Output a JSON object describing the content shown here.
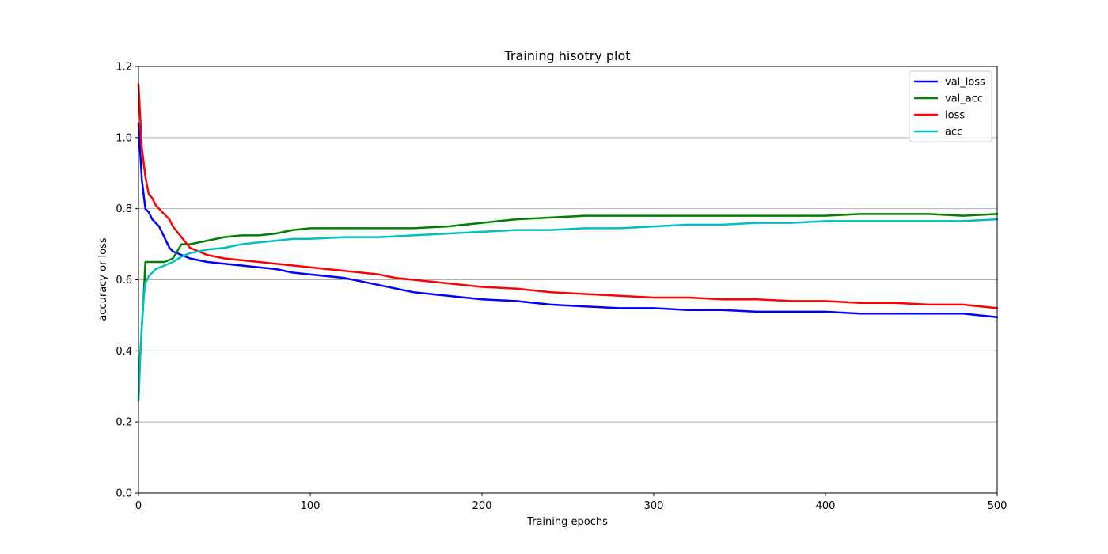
{
  "chart_data": {
    "type": "line",
    "title": "Training hisotry plot",
    "xlabel": "Training epochs",
    "ylabel": "accuracy or loss",
    "xlim": [
      0,
      500
    ],
    "ylim": [
      0,
      1.2
    ],
    "xticks": [
      0,
      100,
      200,
      300,
      400,
      500
    ],
    "yticks": [
      0.0,
      0.2,
      0.4,
      0.6,
      0.8,
      1.0,
      1.2
    ],
    "xtick_labels": [
      "0",
      "100",
      "200",
      "300",
      "400",
      "500"
    ],
    "ytick_labels": [
      "0.0",
      "0.2",
      "0.4",
      "0.6",
      "0.8",
      "1.0",
      "1.2"
    ],
    "grid": "horizontal",
    "legend_position": "top-right",
    "series": [
      {
        "name": "val_loss",
        "color": "#0000ff",
        "x": [
          0,
          2,
          4,
          6,
          8,
          10,
          12,
          14,
          16,
          18,
          20,
          25,
          30,
          40,
          50,
          60,
          70,
          80,
          90,
          100,
          110,
          120,
          130,
          140,
          150,
          160,
          170,
          180,
          190,
          200,
          220,
          240,
          260,
          280,
          300,
          320,
          340,
          360,
          380,
          400,
          420,
          440,
          460,
          480,
          500
        ],
        "y": [
          1.04,
          0.88,
          0.8,
          0.79,
          0.77,
          0.76,
          0.75,
          0.73,
          0.71,
          0.69,
          0.68,
          0.67,
          0.66,
          0.65,
          0.645,
          0.64,
          0.635,
          0.63,
          0.62,
          0.615,
          0.61,
          0.605,
          0.595,
          0.585,
          0.575,
          0.565,
          0.56,
          0.555,
          0.55,
          0.545,
          0.54,
          0.53,
          0.525,
          0.52,
          0.52,
          0.515,
          0.515,
          0.51,
          0.51,
          0.51,
          0.505,
          0.505,
          0.505,
          0.505,
          0.495
        ]
      },
      {
        "name": "val_acc",
        "color": "#008000",
        "x": [
          0,
          1,
          2,
          3,
          4,
          5,
          10,
          15,
          20,
          25,
          30,
          40,
          50,
          60,
          70,
          80,
          90,
          100,
          120,
          140,
          160,
          180,
          200,
          220,
          240,
          260,
          280,
          300,
          320,
          340,
          360,
          380,
          400,
          420,
          440,
          460,
          480,
          500
        ],
        "y": [
          0.26,
          0.39,
          0.47,
          0.55,
          0.65,
          0.65,
          0.65,
          0.65,
          0.66,
          0.7,
          0.7,
          0.71,
          0.72,
          0.725,
          0.725,
          0.73,
          0.74,
          0.745,
          0.745,
          0.745,
          0.745,
          0.75,
          0.76,
          0.77,
          0.775,
          0.78,
          0.78,
          0.78,
          0.78,
          0.78,
          0.78,
          0.78,
          0.78,
          0.785,
          0.785,
          0.785,
          0.78,
          0.785
        ]
      },
      {
        "name": "loss",
        "color": "#ff0000",
        "x": [
          0,
          2,
          4,
          6,
          8,
          10,
          12,
          14,
          16,
          18,
          20,
          25,
          30,
          40,
          50,
          60,
          70,
          80,
          90,
          100,
          110,
          120,
          130,
          140,
          150,
          160,
          170,
          180,
          190,
          200,
          220,
          240,
          260,
          280,
          300,
          320,
          340,
          360,
          380,
          400,
          420,
          440,
          460,
          480,
          500
        ],
        "y": [
          1.15,
          0.97,
          0.89,
          0.84,
          0.83,
          0.81,
          0.8,
          0.79,
          0.78,
          0.77,
          0.75,
          0.72,
          0.69,
          0.67,
          0.66,
          0.655,
          0.65,
          0.645,
          0.64,
          0.635,
          0.63,
          0.625,
          0.62,
          0.615,
          0.605,
          0.6,
          0.595,
          0.59,
          0.585,
          0.58,
          0.575,
          0.565,
          0.56,
          0.555,
          0.55,
          0.55,
          0.545,
          0.545,
          0.54,
          0.54,
          0.535,
          0.535,
          0.53,
          0.53,
          0.52
        ]
      },
      {
        "name": "acc",
        "color": "#00bfbf",
        "x": [
          0,
          1,
          2,
          3,
          4,
          6,
          8,
          10,
          15,
          20,
          25,
          30,
          40,
          50,
          60,
          70,
          80,
          90,
          100,
          120,
          140,
          160,
          180,
          200,
          220,
          240,
          260,
          280,
          300,
          320,
          340,
          360,
          380,
          400,
          420,
          440,
          460,
          480,
          500
        ],
        "y": [
          0.26,
          0.38,
          0.47,
          0.55,
          0.59,
          0.61,
          0.62,
          0.63,
          0.64,
          0.65,
          0.665,
          0.675,
          0.685,
          0.69,
          0.7,
          0.705,
          0.71,
          0.715,
          0.715,
          0.72,
          0.72,
          0.725,
          0.73,
          0.735,
          0.74,
          0.74,
          0.745,
          0.745,
          0.75,
          0.755,
          0.755,
          0.76,
          0.76,
          0.765,
          0.765,
          0.765,
          0.765,
          0.765,
          0.77
        ]
      }
    ]
  }
}
